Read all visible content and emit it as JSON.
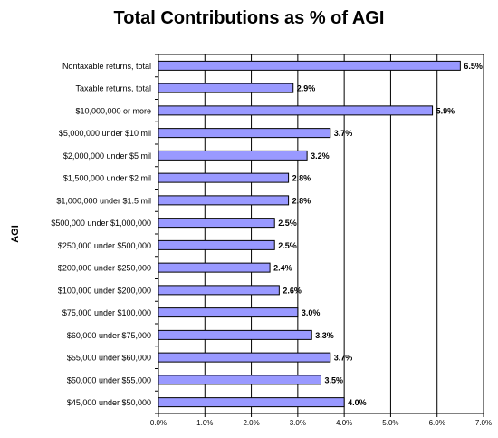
{
  "chart_data": {
    "type": "bar",
    "orientation": "horizontal",
    "title": "Total Contributions as %  of AGI",
    "xlabel": "",
    "ylabel": "AGI",
    "categories": [
      "Nontaxable returns, total",
      "Taxable returns, total",
      "$10,000,000 or more",
      "$5,000,000 under $10 mil",
      "$2,000,000 under $5 mil",
      "$1,500,000 under $2 mil",
      "$1,000,000 under $1.5 mil",
      "$500,000 under $1,000,000",
      "$250,000 under $500,000",
      "$200,000 under $250,000",
      "$100,000 under $200,000",
      "$75,000 under $100,000",
      "$60,000 under $75,000",
      "$55,000 under $60,000",
      "$50,000 under $55,000",
      "$45,000 under $50,000"
    ],
    "values": [
      6.5,
      2.9,
      5.9,
      3.7,
      3.2,
      2.8,
      2.8,
      2.5,
      2.5,
      2.4,
      2.6,
      3.0,
      3.3,
      3.7,
      3.5,
      4.0
    ],
    "data_labels": [
      "6.5%",
      "2.9%",
      "5.9%",
      "3.7%",
      "3.2%",
      "2.8%",
      "2.8%",
      "2.5%",
      "2.5%",
      "2.4%",
      "2.6%",
      "3.0%",
      "3.3%",
      "3.7%",
      "3.5%",
      "4.0%"
    ],
    "xlim": [
      0,
      7
    ],
    "x_ticks": [
      0,
      1,
      2,
      3,
      4,
      5,
      6,
      7
    ],
    "x_tick_labels": [
      "0.0%",
      "1.0%",
      "2.0%",
      "3.0%",
      "4.0%",
      "5.0%",
      "6.0%",
      "7.0%"
    ],
    "grid": "vertical",
    "legend": "none",
    "colors": {
      "bar_fill": "#9999ff",
      "bar_stroke": "#000000",
      "grid": "#000000",
      "plot_bg": "#ffffff"
    }
  }
}
